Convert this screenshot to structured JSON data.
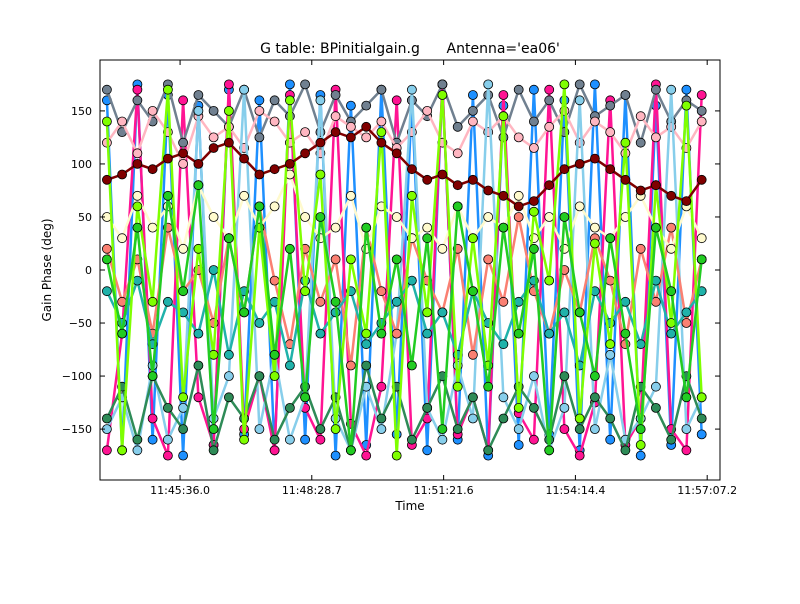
{
  "chart_data": {
    "type": "scatter",
    "title": "G table: BPinitialgain.g      Antenna='ea06'",
    "xlabel": "Time",
    "ylabel": "Gain Phase (deg)",
    "xlim": [
      "11:43:51",
      "11:57:24"
    ],
    "ylim": [
      -198,
      198
    ],
    "xticks": [
      "11:45:36.0",
      "11:48:28.7",
      "11:51:21.6",
      "11:54:14.4",
      "11:57:07.2"
    ],
    "yticks": [
      -150,
      -100,
      -50,
      0,
      50,
      100,
      150
    ],
    "grid": false,
    "x": [
      "11:44:00",
      "11:44:20",
      "11:44:40",
      "11:45:00",
      "11:45:20",
      "11:45:40",
      "11:46:00",
      "11:46:20",
      "11:46:40",
      "11:47:00",
      "11:47:20",
      "11:47:40",
      "11:48:00",
      "11:48:20",
      "11:48:40",
      "11:49:00",
      "11:49:20",
      "11:49:40",
      "11:50:00",
      "11:50:20",
      "11:50:40",
      "11:51:00",
      "11:51:20",
      "11:51:40",
      "11:52:00",
      "11:52:20",
      "11:52:40",
      "11:53:00",
      "11:53:20",
      "11:53:40",
      "11:54:00",
      "11:54:20",
      "11:54:40",
      "11:55:00",
      "11:55:20",
      "11:55:40",
      "11:56:00",
      "11:56:20",
      "11:56:40",
      "11:57:00"
    ],
    "series": [
      {
        "color": "#1e90ff",
        "values": [
          160,
          -170,
          175,
          -160,
          165,
          -175,
          155,
          -165,
          170,
          -155,
          160,
          -170,
          175,
          -160,
          165,
          -175,
          155,
          -165,
          170,
          -155,
          160,
          -170,
          175,
          -160,
          165,
          -175,
          155,
          -165,
          170,
          -155,
          160,
          -170,
          175,
          -160,
          165,
          -175,
          155,
          -165,
          170,
          -155
        ]
      },
      {
        "color": "#ff1493",
        "values": [
          -170,
          -60,
          170,
          -140,
          -175,
          160,
          -120,
          -165,
          175,
          -150,
          -100,
          -170,
          165,
          -130,
          -160,
          170,
          -145,
          -175,
          -110,
          160,
          -165,
          -140,
          175,
          -155,
          -120,
          -170,
          165,
          -135,
          -160,
          170,
          -150,
          -175,
          -125,
          160,
          -165,
          -140,
          175,
          -150,
          -170,
          165
        ]
      },
      {
        "color": "#708090",
        "values": [
          170,
          130,
          160,
          140,
          175,
          120,
          165,
          150,
          135,
          170,
          125,
          160,
          145,
          175,
          130,
          165,
          140,
          155,
          170,
          120,
          160,
          145,
          175,
          135,
          150,
          165,
          125,
          170,
          140,
          160,
          130,
          175,
          145,
          155,
          165,
          120,
          170,
          140,
          160,
          150
        ]
      },
      {
        "color": "#ffb6c1",
        "values": [
          120,
          140,
          110,
          150,
          130,
          100,
          145,
          125,
          135,
          115,
          150,
          140,
          120,
          130,
          110,
          145,
          135,
          125,
          140,
          115,
          130,
          150,
          120,
          110,
          140,
          130,
          145,
          125,
          115,
          135,
          150,
          120,
          140,
          130,
          110,
          145,
          125,
          135,
          115,
          140
        ]
      },
      {
        "color": "#87ceeb",
        "values": [
          -150,
          -120,
          -170,
          -90,
          -160,
          -130,
          150,
          -140,
          -100,
          170,
          -150,
          -80,
          -160,
          -120,
          160,
          -140,
          -170,
          -110,
          -150,
          -60,
          170,
          -130,
          -160,
          -90,
          -140,
          175,
          -120,
          -150,
          -100,
          -170,
          -130,
          160,
          -150,
          -80,
          -160,
          -140,
          -110,
          170,
          -150,
          -120
        ]
      },
      {
        "color": "#2e8b57",
        "values": [
          -140,
          -110,
          -160,
          -100,
          -130,
          -150,
          -90,
          -170,
          -120,
          -140,
          -100,
          -160,
          -130,
          -110,
          -150,
          -120,
          -170,
          -90,
          -140,
          -110,
          -160,
          -130,
          -100,
          -150,
          -120,
          -170,
          -140,
          -110,
          -130,
          -160,
          -100,
          -150,
          -120,
          -140,
          -170,
          -110,
          -130,
          -160,
          -100,
          -140
        ]
      },
      {
        "color": "#fa8072",
        "values": [
          20,
          -30,
          10,
          -60,
          40,
          -20,
          0,
          -50,
          30,
          -40,
          60,
          -10,
          -70,
          20,
          -30,
          10,
          -90,
          40,
          -20,
          -60,
          30,
          -10,
          -40,
          20,
          -80,
          10,
          -30,
          50,
          -20,
          -60,
          0,
          -40,
          30,
          -10,
          -70,
          20,
          -30,
          40,
          -50,
          10
        ]
      },
      {
        "color": "#20b2aa",
        "values": [
          -20,
          -50,
          -10,
          -70,
          -30,
          -40,
          -60,
          0,
          -80,
          -20,
          -50,
          -30,
          -90,
          -10,
          -60,
          -40,
          -20,
          -70,
          -50,
          -30,
          -10,
          -60,
          -40,
          -80,
          -20,
          -50,
          -70,
          -30,
          -10,
          -60,
          -40,
          -90,
          -20,
          -50,
          -30,
          -70,
          -10,
          -60,
          -40,
          -20
        ]
      },
      {
        "color": "#fffacd",
        "values": [
          50,
          30,
          70,
          40,
          60,
          20,
          80,
          50,
          30,
          70,
          40,
          60,
          90,
          50,
          30,
          40,
          70,
          20,
          60,
          50,
          30,
          40,
          20,
          60,
          30,
          50,
          40,
          70,
          30,
          50,
          20,
          60,
          40,
          30,
          50,
          70,
          40,
          20,
          60,
          30
        ]
      },
      {
        "color": "#7fff00",
        "values": [
          140,
          -170,
          60,
          -30,
          170,
          -120,
          20,
          -80,
          150,
          -160,
          40,
          -100,
          160,
          -20,
          90,
          -150,
          10,
          -60,
          130,
          -175,
          70,
          -40,
          165,
          -110,
          30,
          -90,
          145,
          -130,
          55,
          -10,
          175,
          -140,
          25,
          -70,
          120,
          -165,
          80,
          -50,
          155,
          -120
        ]
      },
      {
        "color": "#22cc22",
        "values": [
          10,
          -60,
          40,
          -100,
          70,
          -20,
          80,
          -150,
          30,
          -40,
          60,
          -80,
          20,
          -120,
          50,
          -30,
          -170,
          40,
          -60,
          10,
          -90,
          30,
          -150,
          60,
          -20,
          -110,
          40,
          -60,
          20,
          -170,
          50,
          -40,
          -100,
          30,
          -60,
          -150,
          40,
          -20,
          -120,
          10
        ]
      },
      {
        "color": "#800000",
        "values": [
          85,
          90,
          100,
          95,
          105,
          110,
          100,
          115,
          120,
          105,
          90,
          95,
          100,
          110,
          120,
          130,
          125,
          135,
          120,
          110,
          95,
          85,
          90,
          80,
          85,
          75,
          70,
          60,
          65,
          80,
          95,
          100,
          105,
          95,
          85,
          75,
          80,
          70,
          65,
          85
        ]
      }
    ]
  }
}
